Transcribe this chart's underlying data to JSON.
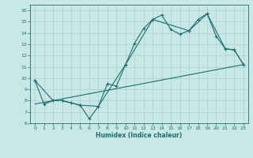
{
  "xlabel": "Humidex (Indice chaleur)",
  "bg_color": "#c8e8e8",
  "grid_color": "#a8c8c8",
  "line_color": "#1a7070",
  "xlim": [
    -0.5,
    23.5
  ],
  "ylim": [
    6,
    16.5
  ],
  "yticks": [
    6,
    7,
    8,
    9,
    10,
    11,
    12,
    13,
    14,
    15,
    16
  ],
  "xticks": [
    0,
    1,
    2,
    3,
    4,
    5,
    6,
    7,
    8,
    9,
    10,
    11,
    12,
    13,
    14,
    15,
    16,
    17,
    18,
    19,
    20,
    21,
    22,
    23
  ],
  "series1_x": [
    0,
    1,
    2,
    3,
    4,
    5,
    6,
    7,
    8,
    9,
    10,
    11,
    12,
    13,
    14,
    15,
    16,
    17,
    18,
    19,
    20,
    21,
    22,
    23
  ],
  "series1_y": [
    9.8,
    7.7,
    8.0,
    8.0,
    7.8,
    7.6,
    6.4,
    7.5,
    9.5,
    9.3,
    11.2,
    13.1,
    14.4,
    15.2,
    15.6,
    14.3,
    13.9,
    14.2,
    15.2,
    15.7,
    13.7,
    12.6,
    12.5,
    11.2
  ],
  "series2_x": [
    0,
    2,
    3,
    5,
    7,
    10,
    13,
    17,
    19,
    21,
    22,
    23
  ],
  "series2_y": [
    9.8,
    8.0,
    8.0,
    7.6,
    7.5,
    11.2,
    15.2,
    14.2,
    15.7,
    12.6,
    12.5,
    11.2
  ],
  "series3_x": [
    0,
    23
  ],
  "series3_y": [
    7.7,
    11.2
  ],
  "figsize": [
    3.2,
    2.0
  ],
  "dpi": 100
}
